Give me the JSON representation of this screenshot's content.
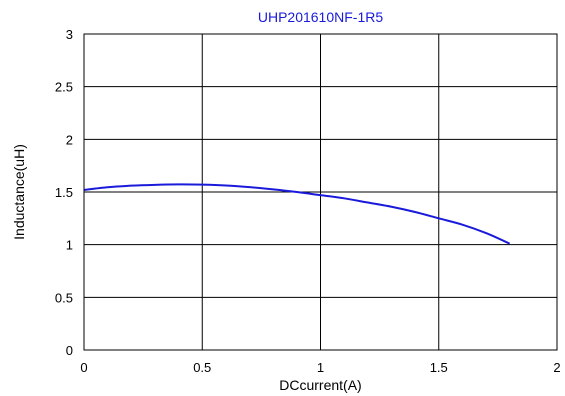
{
  "chart_data": {
    "type": "line",
    "title": "UHP201610NF-1R5",
    "xlabel": "DCcurrent(A)",
    "ylabel": "Inductance(uH)",
    "xlim": [
      0,
      2
    ],
    "ylim": [
      0,
      3
    ],
    "xticks": [
      "0",
      "0.5",
      "1",
      "1.5",
      "2"
    ],
    "yticks": [
      "0",
      "0.5",
      "1",
      "1.5",
      "2",
      "2.5",
      "3"
    ],
    "grid": true,
    "series": [
      {
        "color": "#1a1adb",
        "x": [
          0,
          0.1,
          0.2,
          0.3,
          0.4,
          0.5,
          0.6,
          0.7,
          0.8,
          0.9,
          1.0,
          1.1,
          1.2,
          1.3,
          1.4,
          1.5,
          1.6,
          1.7,
          1.8
        ],
        "y": [
          1.52,
          1.545,
          1.56,
          1.568,
          1.572,
          1.57,
          1.562,
          1.546,
          1.525,
          1.5,
          1.47,
          1.44,
          1.4,
          1.36,
          1.31,
          1.25,
          1.19,
          1.11,
          1.01
        ]
      }
    ]
  }
}
